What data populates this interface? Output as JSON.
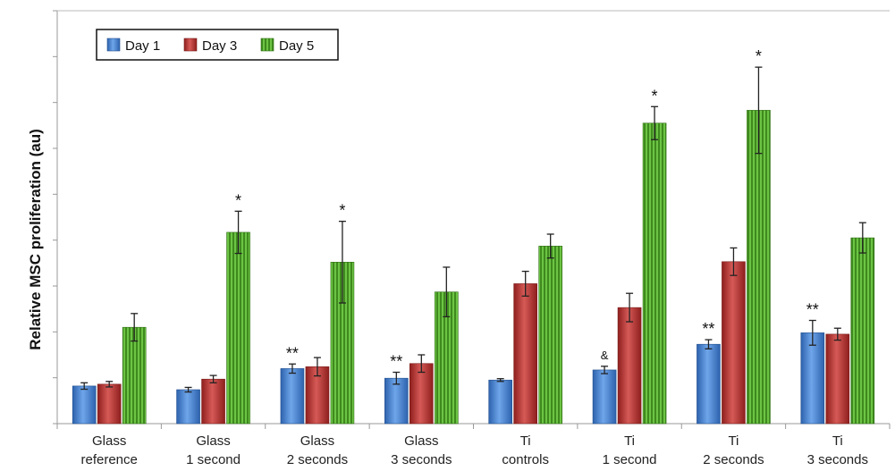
{
  "chart_data": {
    "type": "bar",
    "title": "",
    "xlabel": "",
    "ylabel": "Relative MSC proliferation (au)",
    "ylim": [
      0,
      9
    ],
    "y_tick_step": 1,
    "y_tick_labels_shown": false,
    "grid": false,
    "legend_position": "top-left",
    "categories": [
      [
        "Glass",
        "reference"
      ],
      [
        "Glass",
        "1 second"
      ],
      [
        "Glass",
        "2 seconds"
      ],
      [
        "Glass",
        "3 seconds"
      ],
      [
        "Ti",
        "controls"
      ],
      [
        "Ti",
        "1 second"
      ],
      [
        "Ti",
        "2 seconds"
      ],
      [
        "Ti",
        "3 seconds"
      ]
    ],
    "series": [
      {
        "name": "Day 1",
        "color": "#3f7fd3",
        "values": [
          0.82,
          0.74,
          1.2,
          0.99,
          0.95,
          1.17,
          1.73,
          1.98
        ],
        "errors": [
          0.07,
          0.05,
          0.1,
          0.13,
          0.03,
          0.08,
          0.1,
          0.27
        ],
        "annotations": [
          "",
          "",
          "**",
          "**",
          "",
          "&",
          "**",
          "**"
        ]
      },
      {
        "name": "Day 3",
        "color": "#b8302e",
        "values": [
          0.86,
          0.97,
          1.24,
          1.31,
          3.05,
          2.53,
          3.53,
          1.95
        ],
        "errors": [
          0.06,
          0.08,
          0.2,
          0.19,
          0.27,
          0.31,
          0.3,
          0.13
        ],
        "annotations": [
          "",
          "",
          "",
          "",
          "",
          "",
          "",
          ""
        ]
      },
      {
        "name": "Day 5",
        "color": "#4fa02c",
        "values": [
          2.1,
          4.17,
          3.52,
          2.87,
          3.87,
          6.55,
          6.83,
          4.05
        ],
        "errors": [
          0.3,
          0.46,
          0.89,
          0.54,
          0.26,
          0.36,
          0.94,
          0.33
        ],
        "annotations": [
          "",
          "*",
          "*",
          "",
          "",
          "*",
          "*",
          ""
        ]
      }
    ]
  }
}
